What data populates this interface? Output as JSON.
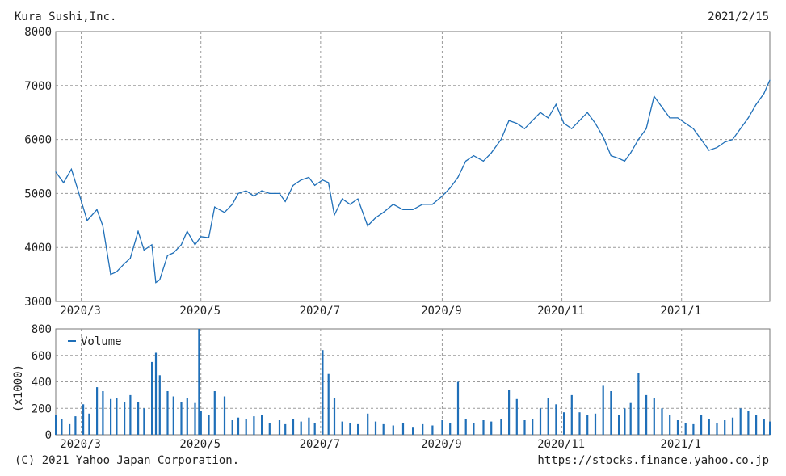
{
  "header": {
    "company": "Kura Sushi,Inc.",
    "date": "2021/2/15"
  },
  "footer": {
    "copyright": "(C) 2021 Yahoo Japan Corporation.",
    "url": "https://stocks.finance.yahoo.co.jp"
  },
  "colors": {
    "line": "#1f6fb8",
    "bar": "#1f6fb8",
    "grid": "#9a9a9a",
    "frame": "#777777"
  },
  "chart_data": [
    {
      "type": "line",
      "title": "",
      "grid": true,
      "ylim": [
        3000,
        8000
      ],
      "y_ticks": [
        "3000",
        "4000",
        "5000",
        "6000",
        "7000",
        "8000"
      ],
      "x_tick_labels": [
        "2020/3",
        "2020/5",
        "2020/7",
        "2020/9",
        "2020/11",
        "2021/1"
      ],
      "x_range": [
        "2020-02-17",
        "2021-02-15"
      ],
      "x": [
        "2020-02-17",
        "2020-02-21",
        "2020-02-25",
        "2020-02-28",
        "2020-03-04",
        "2020-03-09",
        "2020-03-12",
        "2020-03-16",
        "2020-03-19",
        "2020-03-23",
        "2020-03-26",
        "2020-03-30",
        "2020-04-02",
        "2020-04-06",
        "2020-04-08",
        "2020-04-10",
        "2020-04-14",
        "2020-04-17",
        "2020-04-21",
        "2020-04-24",
        "2020-04-28",
        "2020-05-01",
        "2020-05-05",
        "2020-05-08",
        "2020-05-13",
        "2020-05-17",
        "2020-05-20",
        "2020-05-24",
        "2020-05-28",
        "2020-06-01",
        "2020-06-05",
        "2020-06-10",
        "2020-06-13",
        "2020-06-17",
        "2020-06-21",
        "2020-06-25",
        "2020-06-28",
        "2020-07-02",
        "2020-07-05",
        "2020-07-08",
        "2020-07-12",
        "2020-07-16",
        "2020-07-20",
        "2020-07-25",
        "2020-07-29",
        "2020-08-02",
        "2020-08-07",
        "2020-08-12",
        "2020-08-17",
        "2020-08-22",
        "2020-08-27",
        "2020-09-01",
        "2020-09-05",
        "2020-09-09",
        "2020-09-13",
        "2020-09-17",
        "2020-09-22",
        "2020-09-26",
        "2020-10-01",
        "2020-10-05",
        "2020-10-09",
        "2020-10-13",
        "2020-10-17",
        "2020-10-21",
        "2020-10-25",
        "2020-10-29",
        "2020-11-02",
        "2020-11-06",
        "2020-11-10",
        "2020-11-14",
        "2020-11-18",
        "2020-11-22",
        "2020-11-26",
        "2020-11-30",
        "2020-12-03",
        "2020-12-06",
        "2020-12-10",
        "2020-12-14",
        "2020-12-18",
        "2020-12-22",
        "2020-12-26",
        "2020-12-30",
        "2021-01-03",
        "2021-01-07",
        "2021-01-11",
        "2021-01-15",
        "2021-01-19",
        "2021-01-23",
        "2021-01-27",
        "2021-01-31",
        "2021-02-04",
        "2021-02-08",
        "2021-02-12",
        "2021-02-15"
      ],
      "y": [
        5400,
        5200,
        5450,
        5100,
        4500,
        4700,
        4400,
        3500,
        3550,
        3700,
        3800,
        4300,
        3950,
        4050,
        3350,
        3400,
        3850,
        3900,
        4050,
        4300,
        4050,
        4200,
        4180,
        4750,
        4650,
        4800,
        5000,
        5050,
        4950,
        5050,
        5000,
        5000,
        4850,
        5150,
        5250,
        5300,
        5150,
        5250,
        5200,
        4600,
        4900,
        4800,
        4900,
        4400,
        4550,
        4650,
        4800,
        4700,
        4700,
        4800,
        4800,
        4950,
        5100,
        5300,
        5600,
        5700,
        5600,
        5750,
        6000,
        6350,
        6300,
        6200,
        6350,
        6500,
        6400,
        6650,
        6300,
        6200,
        6350,
        6500,
        6300,
        6050,
        5700,
        5650,
        5600,
        5750,
        6000,
        6200,
        6800,
        6600,
        6400,
        6400,
        6300,
        6200,
        6000,
        5800,
        5850,
        5950,
        6000,
        6200,
        6400,
        6650,
        6850,
        7100
      ]
    },
    {
      "type": "bar",
      "title": "",
      "grid": true,
      "ylabel": "(x1000)",
      "legend": "Volume",
      "legend_position": "top-left",
      "ylim": [
        0,
        800
      ],
      "y_ticks": [
        "0",
        "200",
        "400",
        "600",
        "800"
      ],
      "x_tick_labels": [
        "2020/3",
        "2020/5",
        "2020/7",
        "2020/9",
        "2020/11",
        "2021/1"
      ],
      "x_range": [
        "2020-02-17",
        "2021-02-15"
      ],
      "x": [
        "2020-02-17",
        "2020-02-20",
        "2020-02-24",
        "2020-02-27",
        "2020-03-02",
        "2020-03-05",
        "2020-03-09",
        "2020-03-12",
        "2020-03-16",
        "2020-03-19",
        "2020-03-23",
        "2020-03-26",
        "2020-03-30",
        "2020-04-02",
        "2020-04-06",
        "2020-04-08",
        "2020-04-10",
        "2020-04-14",
        "2020-04-17",
        "2020-04-21",
        "2020-04-24",
        "2020-04-28",
        "2020-04-30",
        "2020-05-01",
        "2020-05-05",
        "2020-05-08",
        "2020-05-13",
        "2020-05-17",
        "2020-05-20",
        "2020-05-24",
        "2020-05-28",
        "2020-06-01",
        "2020-06-05",
        "2020-06-10",
        "2020-06-13",
        "2020-06-17",
        "2020-06-21",
        "2020-06-25",
        "2020-06-28",
        "2020-07-02",
        "2020-07-05",
        "2020-07-08",
        "2020-07-12",
        "2020-07-16",
        "2020-07-20",
        "2020-07-25",
        "2020-07-29",
        "2020-08-02",
        "2020-08-07",
        "2020-08-12",
        "2020-08-17",
        "2020-08-22",
        "2020-08-27",
        "2020-09-01",
        "2020-09-05",
        "2020-09-09",
        "2020-09-13",
        "2020-09-17",
        "2020-09-22",
        "2020-09-26",
        "2020-10-01",
        "2020-10-05",
        "2020-10-09",
        "2020-10-13",
        "2020-10-17",
        "2020-10-21",
        "2020-10-25",
        "2020-10-29",
        "2020-11-02",
        "2020-11-06",
        "2020-11-10",
        "2020-11-14",
        "2020-11-18",
        "2020-11-22",
        "2020-11-26",
        "2020-11-30",
        "2020-12-03",
        "2020-12-06",
        "2020-12-10",
        "2020-12-14",
        "2020-12-18",
        "2020-12-22",
        "2020-12-26",
        "2020-12-30",
        "2021-01-03",
        "2021-01-07",
        "2021-01-11",
        "2021-01-15",
        "2021-01-19",
        "2021-01-23",
        "2021-01-27",
        "2021-01-31",
        "2021-02-04",
        "2021-02-08",
        "2021-02-12",
        "2021-02-15"
      ],
      "values": [
        150,
        120,
        80,
        140,
        230,
        160,
        360,
        330,
        270,
        280,
        250,
        300,
        250,
        200,
        550,
        620,
        450,
        330,
        290,
        250,
        280,
        240,
        800,
        180,
        150,
        330,
        290,
        110,
        130,
        120,
        140,
        150,
        90,
        110,
        80,
        120,
        100,
        130,
        90,
        640,
        460,
        280,
        100,
        90,
        80,
        160,
        100,
        80,
        70,
        90,
        60,
        80,
        70,
        110,
        90,
        400,
        120,
        90,
        110,
        100,
        120,
        340,
        270,
        110,
        120,
        200,
        280,
        230,
        170,
        300,
        170,
        150,
        160,
        370,
        330,
        150,
        200,
        240,
        470,
        300,
        280,
        200,
        150,
        110,
        90,
        80,
        150,
        120,
        90,
        110,
        130,
        200,
        180,
        150,
        120,
        100
      ]
    }
  ]
}
